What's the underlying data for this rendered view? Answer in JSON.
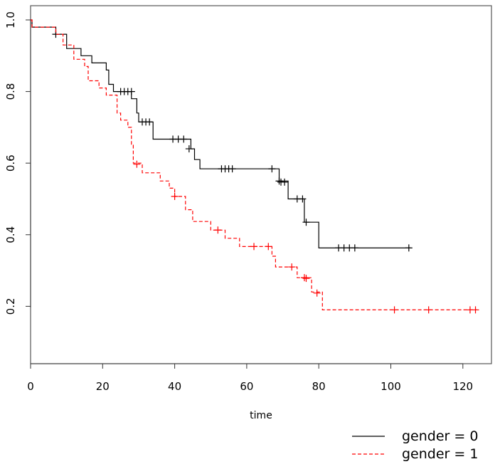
{
  "chart_data": {
    "type": "line",
    "title": "",
    "xlabel": "time",
    "ylabel": "",
    "xlim": [
      0,
      128
    ],
    "ylim": [
      0.05,
      1.0
    ],
    "x_ticks": [
      "0",
      "20",
      "40",
      "60",
      "80",
      "100",
      "120"
    ],
    "y_ticks": [
      "0.2",
      "0.4",
      "0.6",
      "0.8",
      "1.0"
    ],
    "grid": false,
    "legend_position": "bottom-right",
    "series": [
      {
        "name": "gender = 0",
        "color": "#000000",
        "dash": "solid",
        "steps": [
          [
            0,
            1.0
          ],
          [
            0.4,
            0.98
          ],
          [
            7,
            0.96
          ],
          [
            10,
            0.92
          ],
          [
            14,
            0.9
          ],
          [
            17,
            0.88
          ],
          [
            21,
            0.86
          ],
          [
            21.7,
            0.82
          ],
          [
            23,
            0.8
          ],
          [
            28,
            0.78
          ],
          [
            29.5,
            0.74
          ],
          [
            30,
            0.715
          ],
          [
            34,
            0.667
          ],
          [
            44.5,
            0.64
          ],
          [
            45.5,
            0.61
          ],
          [
            47,
            0.584
          ],
          [
            69,
            0.55
          ],
          [
            71.5,
            0.5
          ],
          [
            76,
            0.435
          ],
          [
            80,
            0.363
          ],
          [
            105.5,
            0.363
          ]
        ],
        "censored": [
          [
            7,
            0.96
          ],
          [
            25,
            0.8
          ],
          [
            26,
            0.8
          ],
          [
            27,
            0.8
          ],
          [
            28,
            0.8
          ],
          [
            31,
            0.715
          ],
          [
            32,
            0.715
          ],
          [
            33,
            0.715
          ],
          [
            39.5,
            0.667
          ],
          [
            41,
            0.667
          ],
          [
            42.5,
            0.667
          ],
          [
            44,
            0.64
          ],
          [
            53,
            0.584
          ],
          [
            54,
            0.584
          ],
          [
            55,
            0.584
          ],
          [
            56,
            0.584
          ],
          [
            67,
            0.584
          ],
          [
            69,
            0.55
          ],
          [
            69.5,
            0.547
          ],
          [
            70.5,
            0.547
          ],
          [
            74,
            0.5
          ],
          [
            75.5,
            0.5
          ],
          [
            76.5,
            0.435
          ],
          [
            85.5,
            0.363
          ],
          [
            87,
            0.363
          ],
          [
            88.5,
            0.363
          ],
          [
            90,
            0.363
          ],
          [
            105,
            0.363
          ]
        ]
      },
      {
        "name": "gender = 1",
        "color": "#ff0000",
        "dash": "dashed",
        "steps": [
          [
            0,
            1.0
          ],
          [
            0.4,
            0.98
          ],
          [
            7,
            0.96
          ],
          [
            9,
            0.93
          ],
          [
            12,
            0.89
          ],
          [
            15,
            0.87
          ],
          [
            16,
            0.83
          ],
          [
            19,
            0.81
          ],
          [
            21,
            0.79
          ],
          [
            24,
            0.74
          ],
          [
            25,
            0.72
          ],
          [
            27,
            0.7
          ],
          [
            28,
            0.65
          ],
          [
            28.5,
            0.6
          ],
          [
            31,
            0.573
          ],
          [
            36,
            0.55
          ],
          [
            38.5,
            0.53
          ],
          [
            40,
            0.507
          ],
          [
            43,
            0.47
          ],
          [
            45,
            0.437
          ],
          [
            50,
            0.413
          ],
          [
            54,
            0.39
          ],
          [
            58,
            0.367
          ],
          [
            67,
            0.34
          ],
          [
            68,
            0.31
          ],
          [
            72,
            0.31
          ],
          [
            74,
            0.28
          ],
          [
            78,
            0.24
          ],
          [
            81,
            0.19
          ],
          [
            124,
            0.19
          ]
        ],
        "censored": [
          [
            29.5,
            0.597
          ],
          [
            40,
            0.507
          ],
          [
            52,
            0.413
          ],
          [
            62,
            0.367
          ],
          [
            66,
            0.367
          ],
          [
            72.5,
            0.31
          ],
          [
            76,
            0.28
          ],
          [
            76.5,
            0.278
          ],
          [
            79.5,
            0.237
          ],
          [
            101,
            0.19
          ],
          [
            110.5,
            0.19
          ],
          [
            122,
            0.19
          ],
          [
            123.5,
            0.19
          ]
        ]
      }
    ]
  }
}
